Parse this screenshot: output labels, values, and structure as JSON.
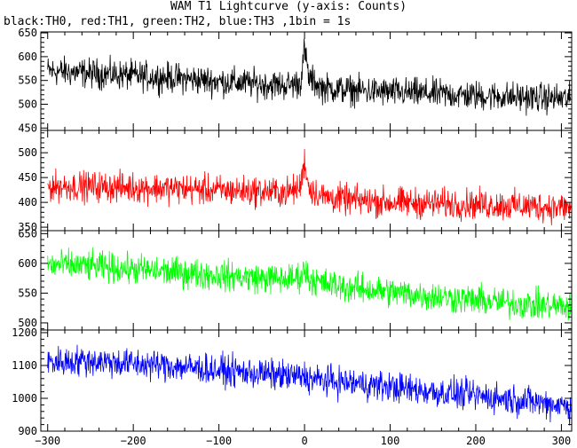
{
  "chart_data": {
    "type": "line",
    "title": "WAM T1 Lightcurve (y-axis: Counts)",
    "subtitle": "black:TH0, red:TH1, green:TH2, blue:TH3 ,1bin = 1s",
    "xlim": [
      -308,
      312
    ],
    "xticks": [
      -300,
      -200,
      -100,
      0,
      100,
      200,
      300
    ],
    "xtick_labels": [
      "−300",
      "−200",
      "−100",
      "0",
      "100",
      "200",
      "300"
    ],
    "grid": false,
    "panels": [
      {
        "name": "TH0",
        "color": "#000000",
        "ylim": [
          445,
          652
        ],
        "yticks": [
          450,
          500,
          550,
          600,
          650
        ],
        "x": [
          -300,
          -250,
          -200,
          -150,
          -100,
          -50,
          -20,
          -5,
          0,
          5,
          20,
          50,
          100,
          150,
          200,
          250,
          300,
          312
        ],
        "y": [
          570,
          565,
          560,
          555,
          548,
          542,
          540,
          545,
          615,
          555,
          535,
          530,
          525,
          522,
          518,
          515,
          512,
          510
        ]
      },
      {
        "name": "TH1",
        "color": "#ff0000",
        "ylim": [
          343,
          545
        ],
        "yticks": [
          350,
          400,
          450,
          500
        ],
        "x": [
          -300,
          -250,
          -200,
          -150,
          -100,
          -50,
          -20,
          -5,
          0,
          5,
          20,
          50,
          100,
          150,
          200,
          250,
          300,
          312
        ],
        "y": [
          432,
          432,
          430,
          428,
          424,
          422,
          420,
          430,
          485,
          430,
          412,
          405,
          400,
          398,
          396,
          393,
          390,
          388
        ]
      },
      {
        "name": "TH2",
        "color": "#00ff00",
        "ylim": [
          488,
          655
        ],
        "yticks": [
          500,
          550,
          600,
          650
        ],
        "x": [
          -300,
          -250,
          -200,
          -150,
          -100,
          -50,
          -20,
          -5,
          0,
          5,
          20,
          50,
          100,
          150,
          200,
          250,
          300,
          312
        ],
        "y": [
          598,
          595,
          590,
          585,
          580,
          575,
          573,
          578,
          590,
          575,
          567,
          560,
          552,
          545,
          538,
          532,
          528,
          526
        ]
      },
      {
        "name": "TH3",
        "color": "#0000ff",
        "ylim": [
          900,
          1208
        ],
        "yticks": [
          900,
          1000,
          1100,
          1200
        ],
        "x": [
          -300,
          -250,
          -200,
          -150,
          -100,
          -50,
          -20,
          -5,
          0,
          5,
          20,
          50,
          100,
          150,
          200,
          250,
          300,
          312
        ],
        "y": [
          1110,
          1115,
          1105,
          1098,
          1085,
          1075,
          1068,
          1065,
          1070,
          1060,
          1055,
          1048,
          1035,
          1020,
          1008,
          995,
          980,
          975
        ]
      }
    ]
  }
}
